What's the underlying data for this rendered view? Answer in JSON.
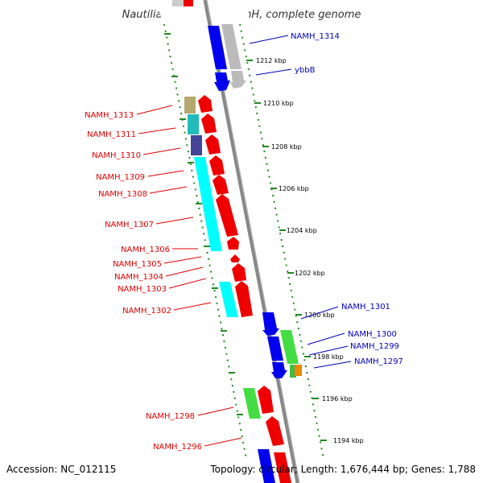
{
  "title": "Nautilia profundicola AmH, complete genome",
  "footer": {
    "accession": "Accession: NC_012115",
    "topology": "Topology: circular; Length: 1,676,444 bp; Genes: 1,788"
  },
  "colors": {
    "left_label": "#dd0000",
    "right_label": "#0000bb",
    "backbone": "#888888",
    "dots": "#228822"
  },
  "scale_ticks": [
    "1212 kbp",
    "1210 kbp",
    "1208 kbp",
    "1206 kbp",
    "1204 kbp",
    "1202 kbp",
    "1200 kbp",
    "1198 kbp",
    "1196 kbp",
    "1194 kbp"
  ],
  "left_labels": [
    "NAMH_1313",
    "NAMH_1311",
    "NAMH_1310",
    "NAMH_1309",
    "NAMH_1308",
    "NAMH_1307",
    "NAMH_1306",
    "NAMH_1305",
    "NAMH_1304",
    "NAMH_1303",
    "NAMH_1302",
    "NAMH_1298",
    "NAMH_1296"
  ],
  "right_labels": [
    "NAMH_1314",
    "ybbB",
    "NAMH_1301",
    "NAMH_1300",
    "NAMH_1299",
    "NAMH_1297"
  ]
}
